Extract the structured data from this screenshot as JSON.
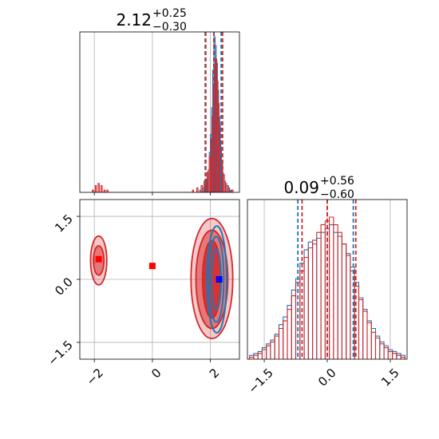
{
  "chart_data": {
    "type": "corner",
    "colors": {
      "series_a": "#1f77b4",
      "series_b": "#d62728",
      "grid": "#b0b0b0"
    },
    "parameters": [
      {
        "title_value": "2.12",
        "title_plus": "+0.25",
        "title_minus": "−0.30"
      },
      {
        "title_value": "0.09",
        "title_plus": "+0.56",
        "title_minus": "−0.60"
      }
    ],
    "x_param0": {
      "range": [
        -2.5,
        3.0
      ],
      "ticks": [
        -2,
        0,
        2
      ],
      "tick_labels": [
        "−2",
        "0",
        "2"
      ]
    },
    "x_param1": {
      "range": [
        -1.9,
        1.9
      ],
      "ticks": [
        -1.5,
        0.0,
        1.5
      ],
      "tick_labels": [
        "−1.5",
        "0.0",
        "1.5"
      ]
    },
    "y_param1": {
      "range": [
        -1.9,
        1.9
      ],
      "ticks": [
        -1.5,
        0.0,
        1.5
      ],
      "tick_labels": [
        "−1.5",
        "0.0",
        "1.5"
      ]
    },
    "marginal_param0": {
      "quantiles_series_a": [
        1.82,
        2.12,
        2.37
      ],
      "quantiles_series_b": [
        1.84,
        2.12,
        2.42
      ],
      "series_a_counts": [
        [
          1.65,
          1
        ],
        [
          1.75,
          2
        ],
        [
          1.82,
          4
        ],
        [
          1.88,
          6
        ],
        [
          1.94,
          10
        ],
        [
          1.98,
          18
        ],
        [
          2.02,
          26
        ],
        [
          2.06,
          38
        ],
        [
          2.1,
          55
        ],
        [
          2.14,
          70
        ],
        [
          2.18,
          66
        ],
        [
          2.22,
          58
        ],
        [
          2.26,
          46
        ],
        [
          2.3,
          34
        ],
        [
          2.34,
          22
        ],
        [
          2.38,
          14
        ],
        [
          2.42,
          9
        ],
        [
          2.5,
          5
        ],
        [
          2.6,
          3
        ],
        [
          2.7,
          1
        ]
      ],
      "series_b_counts": [
        [
          -2.05,
          1
        ],
        [
          -1.95,
          3
        ],
        [
          -1.85,
          4
        ],
        [
          -1.75,
          3
        ],
        [
          -1.65,
          1
        ],
        [
          -1.55,
          1
        ],
        [
          1.4,
          1
        ],
        [
          1.55,
          2
        ],
        [
          1.7,
          3
        ],
        [
          1.8,
          5
        ],
        [
          1.9,
          9
        ],
        [
          1.98,
          16
        ],
        [
          2.04,
          24
        ],
        [
          2.08,
          34
        ],
        [
          2.12,
          48
        ],
        [
          2.16,
          56
        ],
        [
          2.2,
          60
        ],
        [
          2.24,
          50
        ],
        [
          2.28,
          40
        ],
        [
          2.32,
          30
        ],
        [
          2.36,
          20
        ],
        [
          2.4,
          13
        ],
        [
          2.46,
          8
        ],
        [
          2.54,
          4
        ],
        [
          2.64,
          2
        ],
        [
          2.76,
          1
        ]
      ]
    },
    "marginal_param1": {
      "quantiles_series_a": [
        -0.7,
        0.0,
        0.62
      ],
      "quantiles_series_b": [
        -0.6,
        0.0,
        0.68
      ],
      "series_a_counts": [
        [
          -1.8,
          2
        ],
        [
          -1.7,
          3
        ],
        [
          -1.6,
          4
        ],
        [
          -1.5,
          6
        ],
        [
          -1.4,
          8
        ],
        [
          -1.3,
          10
        ],
        [
          -1.2,
          13
        ],
        [
          -1.1,
          18
        ],
        [
          -1.0,
          22
        ],
        [
          -0.9,
          28
        ],
        [
          -0.8,
          36
        ],
        [
          -0.7,
          42
        ],
        [
          -0.6,
          50
        ],
        [
          -0.5,
          57
        ],
        [
          -0.4,
          61
        ],
        [
          -0.3,
          60
        ],
        [
          -0.2,
          63
        ],
        [
          -0.1,
          66
        ],
        [
          0.0,
          68
        ],
        [
          0.1,
          70
        ],
        [
          0.2,
          66
        ],
        [
          0.3,
          64
        ],
        [
          0.4,
          60
        ],
        [
          0.5,
          55
        ],
        [
          0.6,
          48
        ],
        [
          0.7,
          40
        ],
        [
          0.8,
          32
        ],
        [
          0.9,
          26
        ],
        [
          1.0,
          20
        ],
        [
          1.1,
          16
        ],
        [
          1.2,
          12
        ],
        [
          1.3,
          9
        ],
        [
          1.4,
          7
        ],
        [
          1.5,
          5
        ],
        [
          1.6,
          4
        ],
        [
          1.7,
          3
        ],
        [
          1.8,
          2
        ]
      ],
      "series_b_counts": [
        [
          -1.8,
          1
        ],
        [
          -1.7,
          2
        ],
        [
          -1.6,
          3
        ],
        [
          -1.5,
          5
        ],
        [
          -1.4,
          7
        ],
        [
          -1.3,
          9
        ],
        [
          -1.2,
          12
        ],
        [
          -1.1,
          16
        ],
        [
          -1.0,
          20
        ],
        [
          -0.9,
          26
        ],
        [
          -0.8,
          33
        ],
        [
          -0.7,
          40
        ],
        [
          -0.6,
          46
        ],
        [
          -0.5,
          53
        ],
        [
          -0.4,
          58
        ],
        [
          -0.3,
          62
        ],
        [
          -0.2,
          66
        ],
        [
          -0.1,
          70
        ],
        [
          0.0,
          72
        ],
        [
          0.1,
          74
        ],
        [
          0.2,
          70
        ],
        [
          0.3,
          66
        ],
        [
          0.4,
          60
        ],
        [
          0.5,
          54
        ],
        [
          0.6,
          46
        ],
        [
          0.7,
          38
        ],
        [
          0.8,
          31
        ],
        [
          0.9,
          25
        ],
        [
          1.0,
          19
        ],
        [
          1.1,
          14
        ],
        [
          1.2,
          11
        ],
        [
          1.3,
          8
        ],
        [
          1.4,
          6
        ],
        [
          1.5,
          4
        ],
        [
          1.6,
          3
        ],
        [
          1.7,
          2
        ],
        [
          1.8,
          1
        ]
      ]
    },
    "joint": {
      "series_a_contours": [
        {
          "cx": 2.22,
          "cy": 0.0,
          "rx": 0.34,
          "ry": 1.27
        },
        {
          "cx": 2.2,
          "cy": 0.0,
          "rx": 0.26,
          "ry": 1.02
        },
        {
          "cx": 2.2,
          "cy": 0.0,
          "rx": 0.16,
          "ry": 0.72
        }
      ],
      "series_b_contours": [
        {
          "cx": 2.05,
          "cy": 0.02,
          "rx": 0.72,
          "ry": 1.43
        },
        {
          "cx": 2.05,
          "cy": 0.0,
          "rx": 0.55,
          "ry": 1.17
        },
        {
          "cx": 2.05,
          "cy": 0.0,
          "rx": 0.32,
          "ry": 0.92
        },
        {
          "cx": -1.85,
          "cy": 0.45,
          "rx": 0.28,
          "ry": 0.58
        },
        {
          "cx": -1.85,
          "cy": 0.45,
          "rx": 0.18,
          "ry": 0.35
        }
      ],
      "series_b_points": [
        [
          -1.85,
          0.48
        ],
        [
          0.0,
          0.32
        ]
      ],
      "series_a_points": [
        [
          2.3,
          0.0
        ]
      ]
    }
  }
}
